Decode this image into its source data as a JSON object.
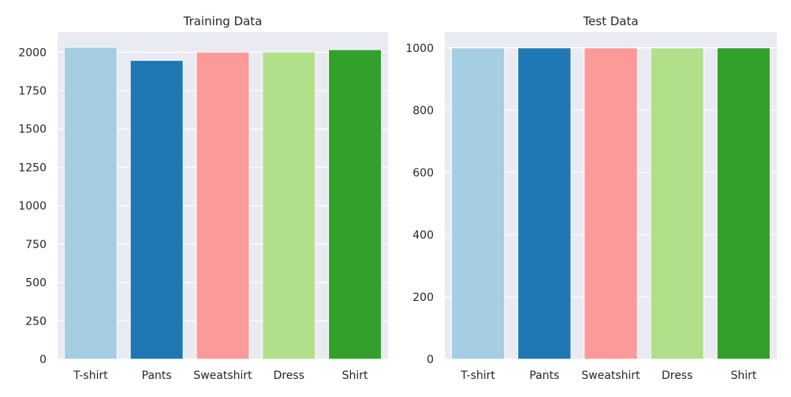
{
  "chart_data": [
    {
      "type": "bar",
      "title": "Training Data",
      "categories": [
        "T-shirt",
        "Pants",
        "Sweatshirt",
        "Dress",
        "Shirt"
      ],
      "values": [
        2033,
        1947,
        2001,
        2002,
        2017
      ],
      "colors": [
        "#a6cee3",
        "#1f78b4",
        "#fb9a99",
        "#b2df8a",
        "#33a02c"
      ],
      "ylim": [
        0,
        2130
      ],
      "yticks": [
        0,
        250,
        500,
        750,
        1000,
        1250,
        1500,
        1750,
        2000
      ],
      "xlabel": "",
      "ylabel": "",
      "grid": true
    },
    {
      "type": "bar",
      "title": "Test Data",
      "categories": [
        "T-shirt",
        "Pants",
        "Sweatshirt",
        "Dress",
        "Shirt"
      ],
      "values": [
        1000,
        1000,
        1000,
        1000,
        1000
      ],
      "colors": [
        "#a6cee3",
        "#1f78b4",
        "#fb9a99",
        "#b2df8a",
        "#33a02c"
      ],
      "ylim": [
        0,
        1050
      ],
      "yticks": [
        0,
        200,
        400,
        600,
        800,
        1000
      ],
      "xlabel": "",
      "ylabel": "",
      "grid": true
    }
  ]
}
